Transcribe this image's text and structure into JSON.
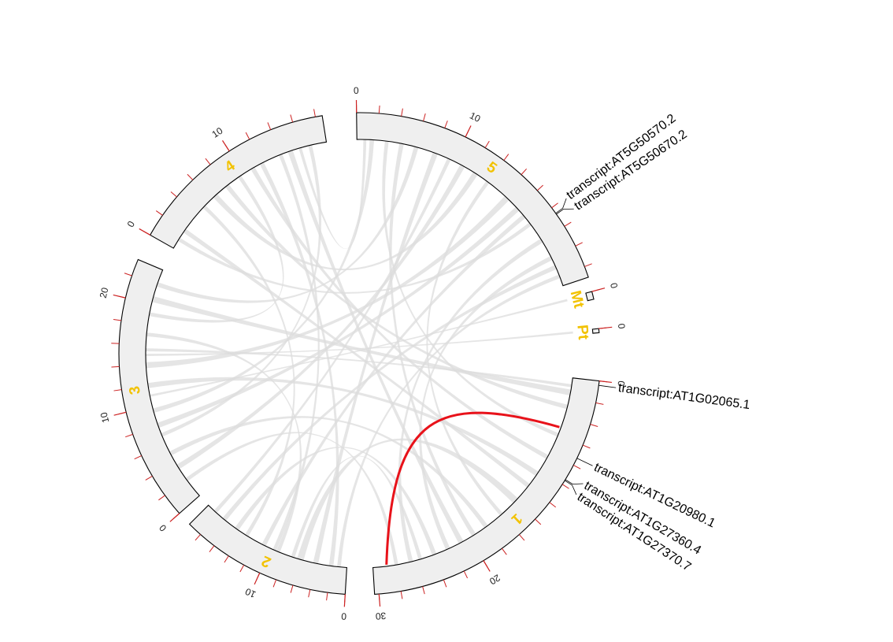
{
  "chart_data": {
    "type": "chord",
    "title": "",
    "colors": {
      "band_fill": "#efefef",
      "band_stroke": "#000000",
      "ticks": "#cc2222",
      "chromosome_labels": "#f2c200",
      "links": "#dcdcdc",
      "highlight_link": "#e8121a",
      "gene_lines": "#000000"
    },
    "chromosomes": [
      {
        "name": "1",
        "length": 30.4,
        "tick_labels": [
          "0",
          "20",
          "30"
        ]
      },
      {
        "name": "2",
        "length": 19.7,
        "tick_labels": [
          "0",
          "10"
        ]
      },
      {
        "name": "3",
        "length": 23.5,
        "tick_labels": [
          "0",
          "10",
          "20"
        ]
      },
      {
        "name": "4",
        "length": 18.6,
        "tick_labels": [
          "0",
          "10"
        ]
      },
      {
        "name": "5",
        "length": 27.0,
        "tick_labels": [
          "0",
          "10"
        ]
      },
      {
        "name": "Mt",
        "length": 0.37,
        "tick_labels": [
          "0"
        ]
      },
      {
        "name": "Pt",
        "length": 0.15,
        "tick_labels": [
          "0"
        ]
      }
    ],
    "tick_interval": 2,
    "gene_labels": [
      {
        "text": "transcript:AT1G02065.1",
        "chr": "1",
        "pos": 0.4
      },
      {
        "text": "transcript:AT1G20980.1",
        "chr": "1",
        "pos": 7.3
      },
      {
        "text": "transcript:AT1G27360.4",
        "chr": "1",
        "pos": 9.5
      },
      {
        "text": "transcript:AT1G27370.7",
        "chr": "1",
        "pos": 9.6
      },
      {
        "text": "transcript:AT5G50570.2",
        "chr": "5",
        "pos": 20.6
      },
      {
        "text": "transcript:AT5G50670.2",
        "chr": "5",
        "pos": 20.7
      }
    ],
    "highlight_link": {
      "from": {
        "chr": "1",
        "pos": 5.2
      },
      "to": {
        "chr": "1",
        "pos": 29.0
      }
    },
    "background_links": [
      {
        "a": [
          "1",
          1.5
        ],
        "b": [
          "3",
          20.5
        ],
        "w": 0.8
      },
      {
        "a": [
          "1",
          3.0
        ],
        "b": [
          "4",
          8.0
        ],
        "w": 0.6
      },
      {
        "a": [
          "1",
          6.0
        ],
        "b": [
          "5",
          3.0
        ],
        "w": 0.5
      },
      {
        "a": [
          "1",
          10.5
        ],
        "b": [
          "3",
          12.0
        ],
        "w": 0.7
      },
      {
        "a": [
          "1",
          12.0
        ],
        "b": [
          "4",
          2.0
        ],
        "w": 0.6
      },
      {
        "a": [
          "1",
          14.0
        ],
        "b": [
          "2",
          6.0
        ],
        "w": 0.9
      },
      {
        "a": [
          "1",
          16.0
        ],
        "b": [
          "5",
          14.0
        ],
        "w": 0.5
      },
      {
        "a": [
          "1",
          18.0
        ],
        "b": [
          "3",
          5.0
        ],
        "w": 0.6
      },
      {
        "a": [
          "1",
          21.0
        ],
        "b": [
          "4",
          15.0
        ],
        "w": 0.7
      },
      {
        "a": [
          "1",
          24.0
        ],
        "b": [
          "2",
          15.0
        ],
        "w": 0.6
      },
      {
        "a": [
          "1",
          26.5
        ],
        "b": [
          "5",
          22.0
        ],
        "w": 0.6
      },
      {
        "a": [
          "1",
          28.0
        ],
        "b": [
          "3",
          2.0
        ],
        "w": 0.5
      },
      {
        "a": [
          "2",
          2.0
        ],
        "b": [
          "4",
          12.0
        ],
        "w": 0.6
      },
      {
        "a": [
          "2",
          4.0
        ],
        "b": [
          "5",
          8.0
        ],
        "w": 0.7
      },
      {
        "a": [
          "2",
          9.0
        ],
        "b": [
          "3",
          17.0
        ],
        "w": 0.5
      },
      {
        "a": [
          "2",
          11.0
        ],
        "b": [
          "5",
          19.0
        ],
        "w": 0.6
      },
      {
        "a": [
          "2",
          13.5
        ],
        "b": [
          "4",
          5.0
        ],
        "w": 0.5
      },
      {
        "a": [
          "2",
          17.0
        ],
        "b": [
          "5",
          25.0
        ],
        "w": 0.6
      },
      {
        "a": [
          "3",
          3.5
        ],
        "b": [
          "5",
          11.0
        ],
        "w": 0.7
      },
      {
        "a": [
          "3",
          7.0
        ],
        "b": [
          "4",
          17.0
        ],
        "w": 0.5
      },
      {
        "a": [
          "3",
          9.5
        ],
        "b": [
          "5",
          1.5
        ],
        "w": 0.6
      },
      {
        "a": [
          "3",
          14.0
        ],
        "b": [
          "5",
          16.5
        ],
        "w": 0.8
      },
      {
        "a": [
          "3",
          19.0
        ],
        "b": [
          "4",
          9.5
        ],
        "w": 0.5
      },
      {
        "a": [
          "3",
          22.0
        ],
        "b": [
          "5",
          6.0
        ],
        "w": 0.6
      },
      {
        "a": [
          "4",
          1.0
        ],
        "b": [
          "5",
          20.0
        ],
        "w": 0.5
      },
      {
        "a": [
          "4",
          6.5
        ],
        "b": [
          "5",
          12.5
        ],
        "w": 0.7
      },
      {
        "a": [
          "4",
          11.0
        ],
        "b": [
          "1",
          8.5
        ],
        "w": 0.6
      },
      {
        "a": [
          "4",
          14.0
        ],
        "b": [
          "2",
          9.5
        ],
        "w": 0.5
      },
      {
        "a": [
          "5",
          4.5
        ],
        "b": [
          "1",
          19.5
        ],
        "w": 0.6
      },
      {
        "a": [
          "5",
          9.5
        ],
        "b": [
          "2",
          18.5
        ],
        "w": 0.5
      },
      {
        "a": [
          "5",
          18.0
        ],
        "b": [
          "3",
          8.0
        ],
        "w": 0.7
      },
      {
        "a": [
          "5",
          24.0
        ],
        "b": [
          "1",
          22.5
        ],
        "w": 0.6
      },
      {
        "a": [
          "5",
          26.0
        ],
        "b": [
          "2",
          1.0
        ],
        "w": 0.5
      },
      {
        "a": [
          "Mt",
          0.1
        ],
        "b": [
          "3",
          11.0
        ],
        "w": 0.3
      },
      {
        "a": [
          "Pt",
          0.05
        ],
        "b": [
          "3",
          15.0
        ],
        "w": 0.3
      },
      {
        "a": [
          "1",
          0.8
        ],
        "b": [
          "3",
          15.5
        ],
        "w": 0.4
      },
      {
        "a": [
          "2",
          7.0
        ],
        "b": [
          "1",
          25.5
        ],
        "w": 0.5
      },
      {
        "a": [
          "4",
          16.0
        ],
        "b": [
          "5",
          0.8
        ],
        "w": 0.4
      }
    ]
  }
}
